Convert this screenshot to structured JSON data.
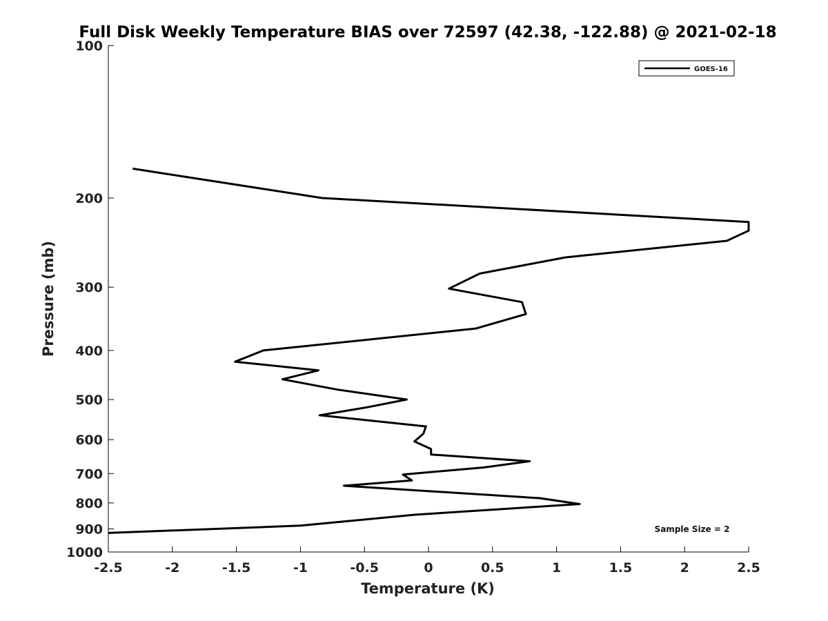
{
  "chart_data": {
    "type": "line",
    "title": "Full Disk Weekly Temperature BIAS over 72597 (42.38, -122.88) @ 2021-02-18",
    "xlabel": "Temperature (K)",
    "ylabel": "Pressure (mb)",
    "xlim": [
      -2.5,
      2.5
    ],
    "ylim": [
      1000,
      100
    ],
    "yscale": "log",
    "y_reversed": true,
    "grid": false,
    "legend_position": "top-right",
    "x_ticks": [
      -2.5,
      -2,
      -1.5,
      -1,
      -0.5,
      0,
      0.5,
      1,
      1.5,
      2,
      2.5
    ],
    "x_tick_labels": [
      "-2.5",
      "-2",
      "-1.5",
      "-1",
      "-0.5",
      "0",
      "0.5",
      "1",
      "1.5",
      "2",
      "2.5"
    ],
    "y_ticks": [
      100,
      200,
      300,
      400,
      500,
      600,
      700,
      800,
      900,
      1000
    ],
    "y_tick_labels": [
      "100",
      "200",
      "300",
      "400",
      "500",
      "600",
      "700",
      "800",
      "900",
      "1000"
    ],
    "series": [
      {
        "name": "GOES-16",
        "color": "#000000",
        "points": [
          [
            -2.31,
            175
          ],
          [
            -0.83,
            200
          ],
          [
            2.5,
            223
          ],
          [
            2.5,
            232
          ],
          [
            2.33,
            243
          ],
          [
            1.07,
            262
          ],
          [
            0.4,
            282
          ],
          [
            0.16,
            302
          ],
          [
            0.73,
            321
          ],
          [
            0.76,
            339
          ],
          [
            0.37,
            362
          ],
          [
            -1.29,
            400
          ],
          [
            -1.51,
            421
          ],
          [
            -0.86,
            438
          ],
          [
            -1.14,
            456
          ],
          [
            -0.71,
            478
          ],
          [
            -0.17,
            500
          ],
          [
            -0.48,
            518
          ],
          [
            -0.85,
            537
          ],
          [
            -0.02,
            565
          ],
          [
            -0.04,
            584
          ],
          [
            -0.11,
            605
          ],
          [
            0.02,
            626
          ],
          [
            0.02,
            642
          ],
          [
            0.79,
            662
          ],
          [
            0.43,
            681
          ],
          [
            -0.2,
            703
          ],
          [
            -0.13,
            722
          ],
          [
            -0.66,
            740
          ],
          [
            0.87,
            783
          ],
          [
            1.18,
            804
          ],
          [
            -0.1,
            844
          ],
          [
            -1.0,
            887
          ],
          [
            -2.5,
            917
          ]
        ]
      }
    ],
    "annotations": [
      {
        "text": "Sample Size = 2",
        "placement": "bottom-right"
      }
    ]
  }
}
